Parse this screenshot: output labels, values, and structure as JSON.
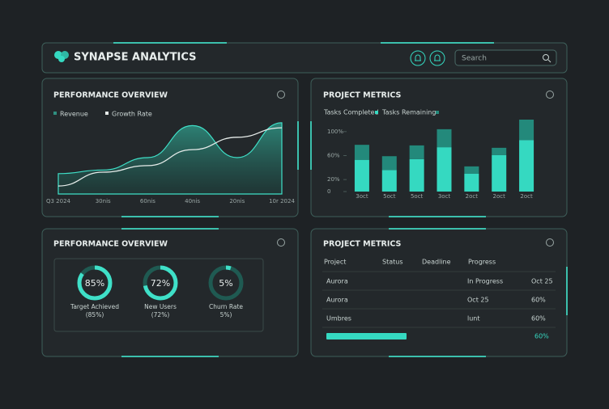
{
  "header": {
    "brand": "SYNAPSE ANALYTICS",
    "search": "Search"
  },
  "performance_chart": {
    "type": "area-line",
    "title": "PERFORMANCE OVERVIEW",
    "categories": [
      "Q3 2024",
      "30nis",
      "60nis",
      "40nis",
      "20nis",
      "10r 2024"
    ],
    "ylim": [
      0,
      100
    ],
    "series": [
      {
        "name": "Revenue",
        "color": "#2f8f80",
        "values": [
          28,
          33,
          50,
          94,
          50,
          98
        ]
      },
      {
        "name": "Growth Rate",
        "color": "#e6ecea",
        "values": [
          11,
          30,
          39,
          61,
          78,
          91
        ]
      }
    ]
  },
  "metrics_chart": {
    "type": "stacked-bar",
    "title": "PROJECT METRICS",
    "categories": [
      "3oct",
      "5oct",
      "5oct",
      "3oct",
      "2oct",
      "2oct",
      "2oct"
    ],
    "ylim": [
      0,
      120
    ],
    "yticks": [
      {
        "value": 100,
        "label": "100%"
      },
      {
        "value": 60,
        "label": "60%"
      },
      {
        "value": 20,
        "label": "20%"
      },
      0
    ],
    "series": [
      {
        "name": "Tasks Completed",
        "color": "#35d9c1",
        "values": [
          53,
          36,
          54,
          74,
          30,
          61,
          86
        ]
      },
      {
        "name": "Tasks Remaining",
        "color": "#23897b",
        "values": [
          25,
          23,
          23,
          30,
          12,
          12,
          34
        ]
      }
    ]
  },
  "gauges": {
    "title": "PERFORMANCE OVERVIEW",
    "items": [
      {
        "value": 85,
        "value_label": "85%",
        "name": "Target Achieved",
        "note": "(85%)"
      },
      {
        "value": 72,
        "value_label": "72%",
        "name": "New Users",
        "note": "(72%)"
      },
      {
        "value": 5,
        "value_label": "5%",
        "name": "Churn Rate",
        "note": "5%)"
      }
    ]
  },
  "table": {
    "title": "PROJECT METRICS",
    "columns": [
      "Project",
      "Status",
      "Deadline",
      "Progress"
    ],
    "rows": [
      [
        "Aurora",
        "In Progress",
        "Oct 25"
      ],
      [
        "Aurora",
        "Oct 25",
        "60%"
      ],
      [
        "Umbres",
        "lunt",
        "60%"
      ]
    ],
    "progress": {
      "value": 60,
      "label": "60%"
    }
  }
}
